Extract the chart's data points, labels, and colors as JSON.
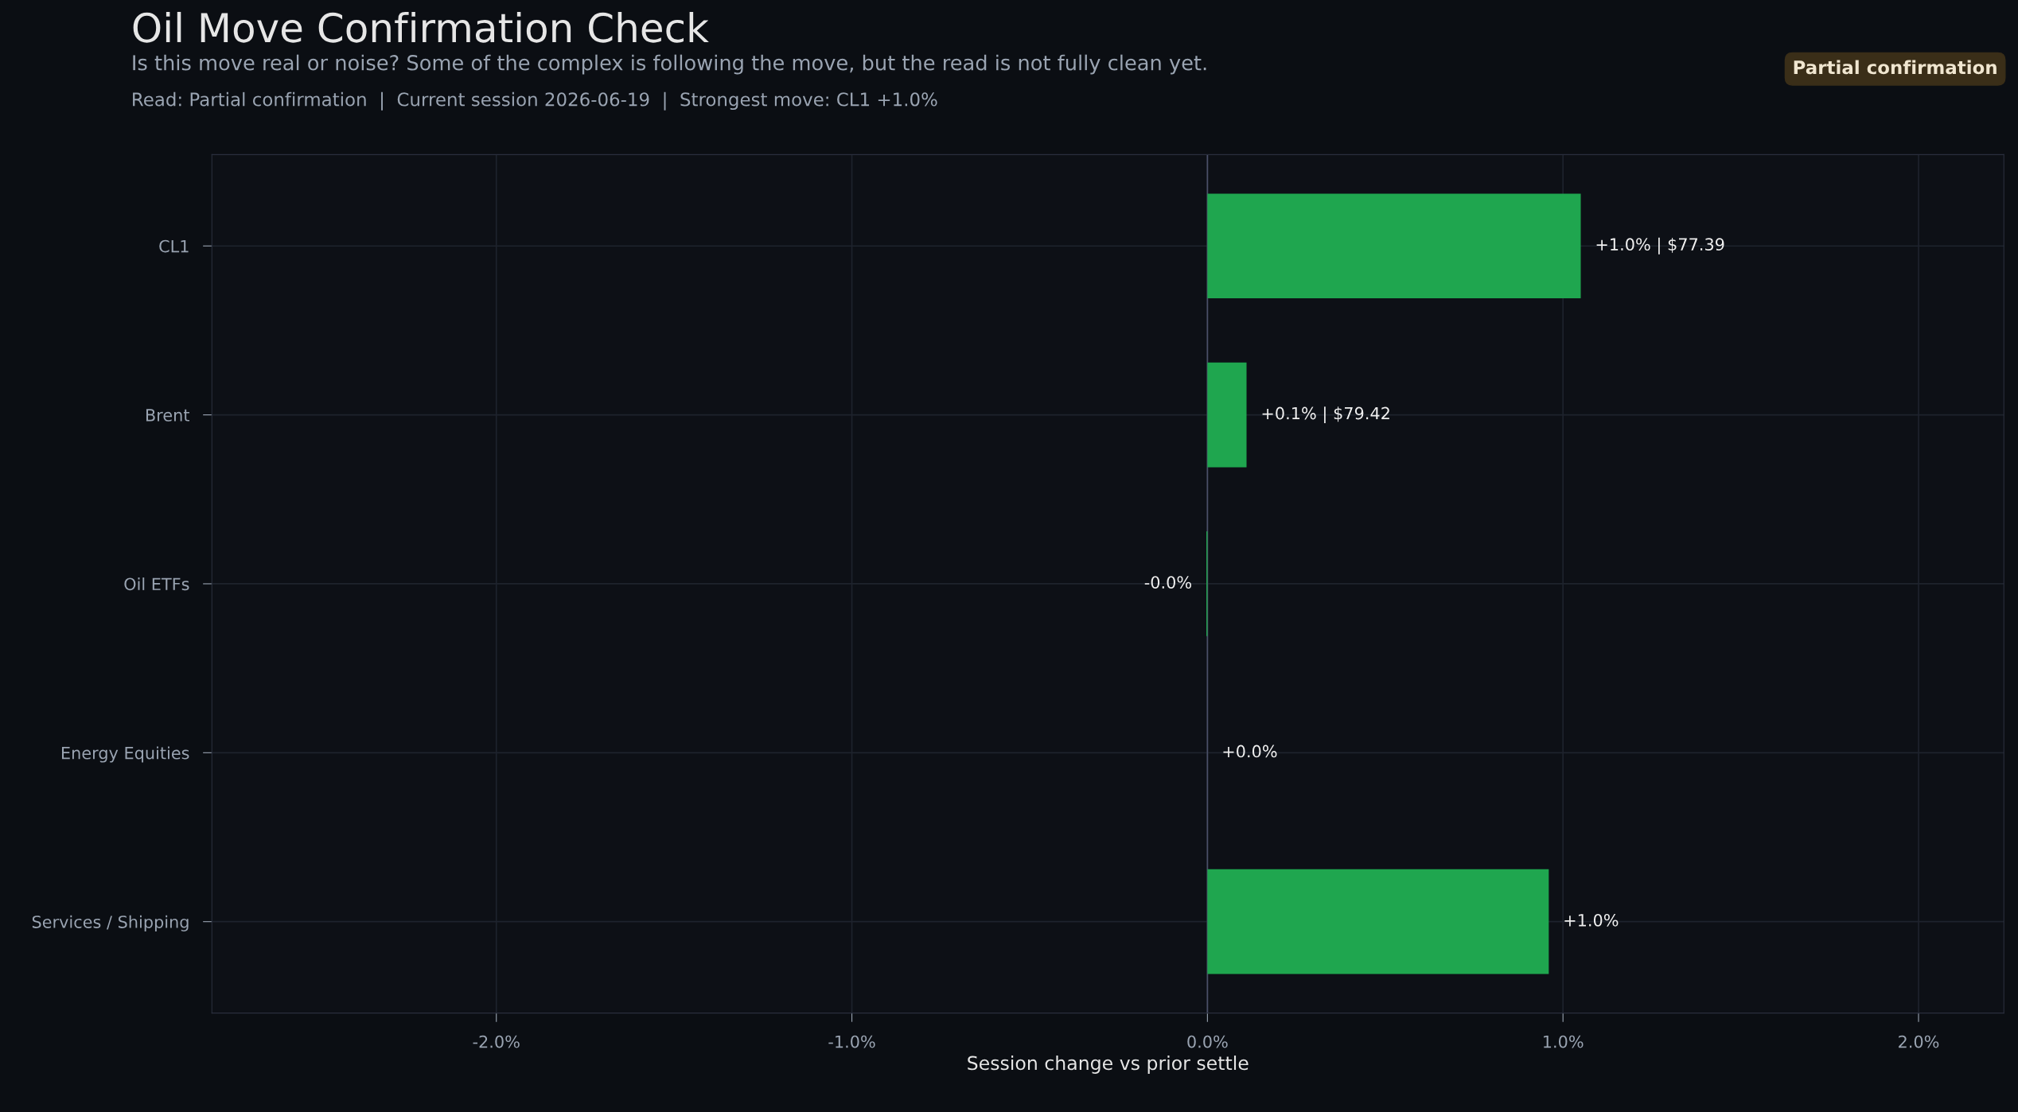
{
  "chart_data": {
    "type": "bar",
    "orientation": "horizontal",
    "title": "Oil Move Confirmation Check",
    "subtitle": "Is this move real or noise? Some of the complex is following the move, but the read is not fully clean yet.",
    "annotations": [
      "Read: Partial confirmation  |  Current session 2026-06-19  |  Strongest move: CL1 +1.0%",
      "Partial confirmation"
    ],
    "xlabel": "Session change vs prior settle",
    "categories": [
      "CL1",
      "Brent",
      "Oil ETFs",
      "Energy Equities",
      "Services / Shipping"
    ],
    "values": [
      1.05,
      0.11,
      -0.003,
      0.0,
      0.96
    ],
    "value_labels": [
      "+1.0% | $77.39",
      "+0.1% | $79.42",
      "-0.0%",
      "+0.0%",
      "+1.0%"
    ],
    "color": "#1fa64f",
    "xlim": [
      -2.8,
      2.24
    ],
    "xticks": [
      {
        "value": -2,
        "label": "-2.0%"
      },
      {
        "value": -1,
        "label": "-1.0%"
      },
      {
        "value": 0,
        "label": "0.0%"
      },
      {
        "value": 1,
        "label": "1.0%"
      },
      {
        "value": 2,
        "label": "2.0%"
      }
    ],
    "grid": true
  }
}
